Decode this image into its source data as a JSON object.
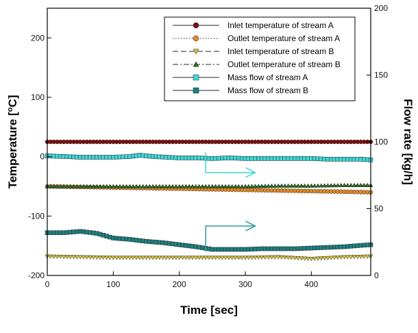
{
  "chart_data": {
    "type": "line",
    "xlabel": "Time [sec]",
    "ylabel_left": "Temperature [°C]",
    "ylabel_left_parts": {
      "prefix": "Temperature [",
      "sup": "o",
      "suffix": "C]"
    },
    "ylabel_right": "Flow rate [kg/h]",
    "xlim": [
      0,
      490
    ],
    "ylim_left": [
      -200,
      250
    ],
    "ylim_right": [
      0,
      200
    ],
    "x_ticks": [
      0,
      100,
      200,
      300,
      400
    ],
    "y_left_ticks": [
      -200,
      -100,
      0,
      100,
      200
    ],
    "y_right_ticks": [
      0,
      50,
      100,
      150,
      200
    ],
    "x_tick_labels": [
      "0",
      "100",
      "200",
      "300",
      "400"
    ],
    "y_left_tick_labels": [
      "-200",
      "-100",
      "0",
      "100",
      "200"
    ],
    "y_right_tick_labels": [
      "0",
      "50",
      "100",
      "150",
      "200"
    ],
    "grid": false,
    "legend_position": "top-right",
    "series": [
      {
        "name": "Inlet temperature of stream A",
        "axis": "left",
        "marker": "circle",
        "line": "solid",
        "color": "#7a1010",
        "x": [
          0,
          50,
          100,
          150,
          200,
          250,
          300,
          350,
          400,
          450,
          490
        ],
        "y": [
          25,
          25,
          25,
          25,
          25,
          25,
          25,
          25,
          25,
          25,
          25
        ]
      },
      {
        "name": "Outlet temperature of stream A",
        "axis": "left",
        "marker": "circle",
        "line": "dotted",
        "color": "#e08a28",
        "x": [
          0,
          50,
          100,
          150,
          200,
          250,
          300,
          350,
          400,
          450,
          490
        ],
        "y": [
          -50,
          -51,
          -52,
          -53,
          -54,
          -55,
          -56,
          -57,
          -58,
          -59,
          -60
        ]
      },
      {
        "name": "Inlet temperature of stream B",
        "axis": "left",
        "marker": "triangle-down",
        "line": "dashed",
        "color": "#d4c43a",
        "x": [
          0,
          50,
          100,
          150,
          200,
          250,
          300,
          350,
          400,
          450,
          490
        ],
        "y": [
          -168,
          -169,
          -170,
          -170,
          -170,
          -170,
          -170,
          -169,
          -172,
          -169,
          -168
        ]
      },
      {
        "name": "Outlet temperature of stream B",
        "axis": "left",
        "marker": "triangle-up",
        "line": "dashdot",
        "color": "#2e6b1f",
        "x": [
          0,
          50,
          100,
          150,
          200,
          250,
          300,
          350,
          400,
          450,
          490
        ],
        "y": [
          -50,
          -50,
          -50,
          -50,
          -50,
          -50,
          -50,
          -49,
          -49,
          -48,
          -48
        ]
      },
      {
        "name": "Mass flow of stream A",
        "axis": "right",
        "marker": "square",
        "line": "solid",
        "color": "#3fd7d7",
        "x": [
          0,
          25,
          50,
          75,
          100,
          125,
          140,
          160,
          180,
          200,
          225,
          250,
          275,
          300,
          325,
          350,
          375,
          400,
          425,
          450,
          475,
          490
        ],
        "y": [
          89.5,
          89,
          88.5,
          88.5,
          88.5,
          89,
          90,
          89,
          88.5,
          88,
          88,
          87.5,
          88,
          87.5,
          87.5,
          87.5,
          87.5,
          87.5,
          87,
          87,
          87,
          86.5
        ]
      },
      {
        "name": "Mass flow of stream B",
        "axis": "right",
        "marker": "square",
        "line": "solid",
        "color": "#1e8080",
        "x": [
          0,
          25,
          50,
          75,
          100,
          125,
          150,
          175,
          200,
          225,
          250,
          275,
          300,
          325,
          350,
          375,
          400,
          425,
          450,
          475,
          490
        ],
        "y": [
          32,
          32,
          33,
          31.5,
          28,
          27,
          25.5,
          24.5,
          23,
          21.5,
          19.5,
          19.5,
          19.5,
          20,
          20,
          20,
          20.5,
          21,
          21.5,
          22.5,
          23
        ]
      }
    ],
    "arrows": [
      {
        "color": "#3fd7d7",
        "start": [
          240,
          92
        ],
        "corner": [
          240,
          77
        ],
        "end": [
          315,
          77
        ]
      },
      {
        "color": "#2e9a9a",
        "start": [
          240,
          18
        ],
        "corner": [
          240,
          37
        ],
        "end": [
          315,
          37
        ]
      }
    ]
  }
}
